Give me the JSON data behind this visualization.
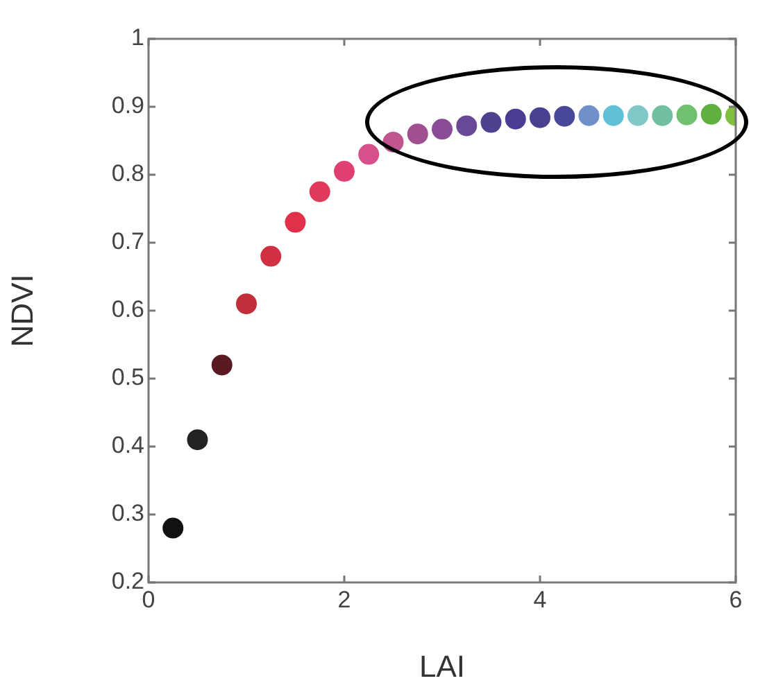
{
  "chart_data": {
    "type": "scatter",
    "xlabel": "LAI",
    "ylabel": "NDVI",
    "marker": "circle",
    "grid": false,
    "legend": false,
    "x": [
      0.25,
      0.5,
      0.75,
      1.0,
      1.25,
      1.5,
      1.75,
      2.0,
      2.25,
      2.5,
      2.75,
      3.0,
      3.25,
      3.5,
      3.75,
      4.0,
      4.25,
      4.5,
      4.75,
      5.0,
      5.25,
      5.5,
      5.75,
      6.0
    ],
    "values": [
      0.28,
      0.41,
      0.52,
      0.61,
      0.68,
      0.73,
      0.775,
      0.805,
      0.83,
      0.848,
      0.86,
      0.867,
      0.872,
      0.877,
      0.882,
      0.884,
      0.886,
      0.887,
      0.887,
      0.887,
      0.887,
      0.888,
      0.889,
      0.887
    ],
    "colors": [
      "#111111",
      "#222222",
      "#5a1a22",
      "#c0303a",
      "#d03040",
      "#e0304a",
      "#e03a5a",
      "#e04070",
      "#d8508a",
      "#c05590",
      "#a05090",
      "#8a4c98",
      "#6a4898",
      "#504090",
      "#4a3c90",
      "#484090",
      "#4a4898",
      "#7090c8",
      "#60c0d8",
      "#80c8c8",
      "#70c0a0",
      "#70c070",
      "#60b040",
      "#80c040"
    ],
    "xlim": [
      0,
      6
    ],
    "xticks": [
      0,
      2,
      4,
      6
    ],
    "ylim": [
      0.2,
      1
    ],
    "yticks": [
      0.2,
      0.3,
      0.4,
      0.5,
      0.6,
      0.7,
      0.8,
      0.9,
      1
    ]
  }
}
